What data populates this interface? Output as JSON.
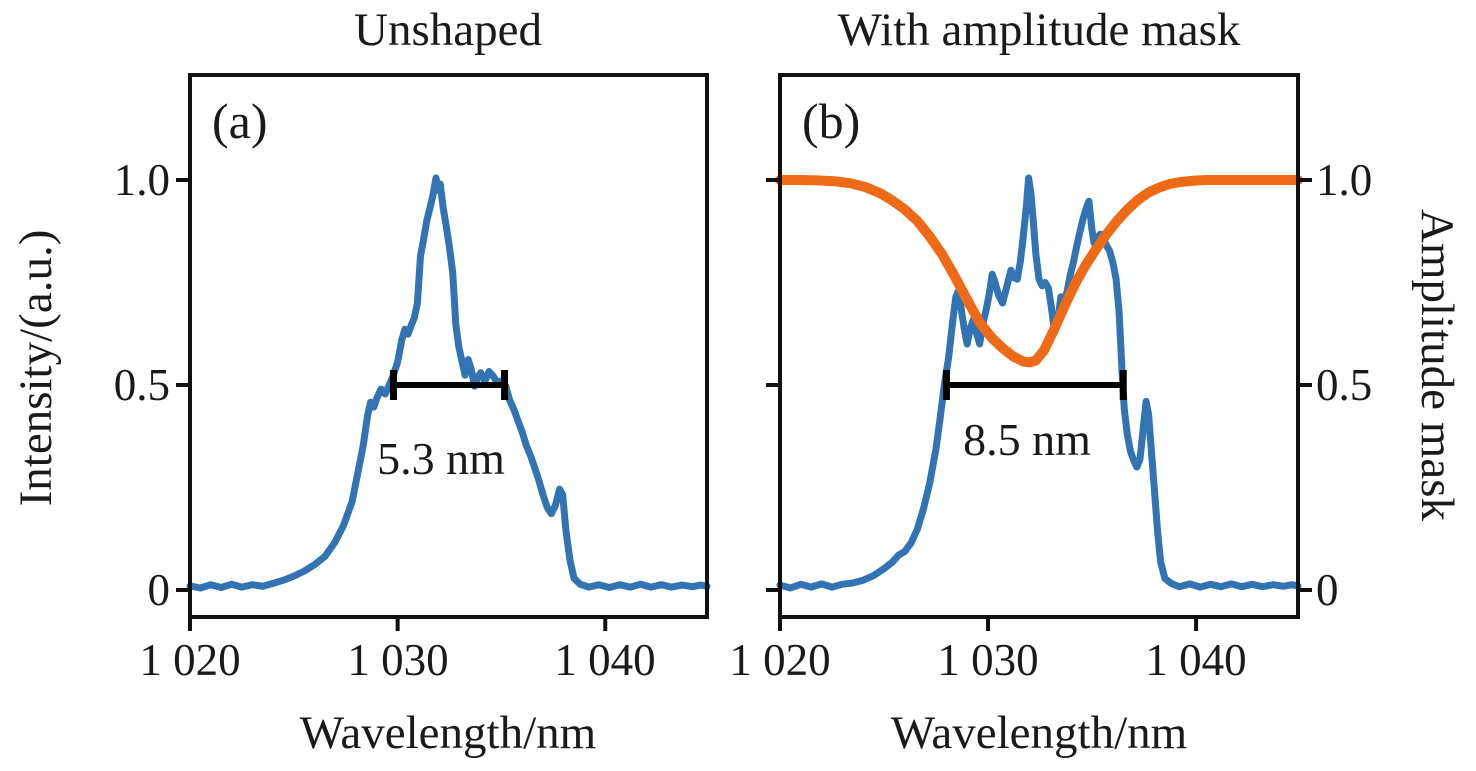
{
  "figure": {
    "colors": {
      "spectrum_blue": "#3273b3",
      "mask_orange": "#ee6a17",
      "axis_black": "#111111",
      "marker_black": "#000000",
      "background": "#ffffff"
    },
    "ylabel_left": "Intensity/(a.u.)",
    "ylabel_right": "Amplitude mask"
  },
  "chart_data": [
    {
      "type": "line",
      "panel_label": "(a)",
      "title": "Unshaped",
      "xlabel": "Wavelength/nm",
      "ylabel": "Intensity/(a.u.)",
      "xlim": [
        1020,
        1044.9
      ],
      "ylim": [
        -0.07,
        1.26
      ],
      "grid": false,
      "legend": "none",
      "xticks": {
        "values": [
          1020,
          1030,
          1040
        ],
        "labels": [
          "1 020",
          "1 030",
          "1 040"
        ]
      },
      "yticks": {
        "values": [
          0,
          0.5,
          1.0
        ],
        "labels": [
          "0",
          "0.5",
          "1.0"
        ]
      },
      "fwhm_marker": {
        "x1": 1029.8,
        "x2": 1035.15,
        "y": 0.5,
        "label": "5.3 nm"
      },
      "series": [
        {
          "name": "spectrum",
          "color": "#3273b3",
          "width": 7,
          "points": [
            [
              1020.0,
              0.01
            ],
            [
              1020.5,
              0.005
            ],
            [
              1021.0,
              0.013
            ],
            [
              1021.5,
              0.006
            ],
            [
              1022.0,
              0.014
            ],
            [
              1022.5,
              0.007
            ],
            [
              1023.0,
              0.013
            ],
            [
              1023.5,
              0.009
            ],
            [
              1024.0,
              0.016
            ],
            [
              1024.5,
              0.024
            ],
            [
              1025.0,
              0.034
            ],
            [
              1025.5,
              0.046
            ],
            [
              1026.0,
              0.062
            ],
            [
              1026.5,
              0.082
            ],
            [
              1027.0,
              0.118
            ],
            [
              1027.4,
              0.158
            ],
            [
              1027.8,
              0.215
            ],
            [
              1028.1,
              0.29
            ],
            [
              1028.35,
              0.355
            ],
            [
              1028.55,
              0.425
            ],
            [
              1028.7,
              0.458
            ],
            [
              1028.85,
              0.446
            ],
            [
              1029.0,
              0.468
            ],
            [
              1029.2,
              0.49
            ],
            [
              1029.4,
              0.478
            ],
            [
              1029.6,
              0.5
            ],
            [
              1029.8,
              0.525
            ],
            [
              1030.0,
              0.556
            ],
            [
              1030.2,
              0.61
            ],
            [
              1030.35,
              0.636
            ],
            [
              1030.5,
              0.624
            ],
            [
              1030.65,
              0.645
            ],
            [
              1030.8,
              0.663
            ],
            [
              1030.95,
              0.7
            ],
            [
              1031.1,
              0.815
            ],
            [
              1031.25,
              0.855
            ],
            [
              1031.4,
              0.9
            ],
            [
              1031.55,
              0.93
            ],
            [
              1031.7,
              0.962
            ],
            [
              1031.85,
              1.005
            ],
            [
              1031.95,
              0.975
            ],
            [
              1032.05,
              0.99
            ],
            [
              1032.2,
              0.93
            ],
            [
              1032.35,
              0.885
            ],
            [
              1032.5,
              0.835
            ],
            [
              1032.65,
              0.775
            ],
            [
              1032.8,
              0.648
            ],
            [
              1032.95,
              0.592
            ],
            [
              1033.1,
              0.558
            ],
            [
              1033.25,
              0.524
            ],
            [
              1033.4,
              0.562
            ],
            [
              1033.55,
              0.538
            ],
            [
              1033.7,
              0.497
            ],
            [
              1033.85,
              0.518
            ],
            [
              1034.0,
              0.53
            ],
            [
              1034.2,
              0.508
            ],
            [
              1034.4,
              0.533
            ],
            [
              1034.6,
              0.522
            ],
            [
              1034.8,
              0.506
            ],
            [
              1035.0,
              0.51
            ],
            [
              1035.2,
              0.498
            ],
            [
              1035.4,
              0.462
            ],
            [
              1035.6,
              0.44
            ],
            [
              1035.8,
              0.412
            ],
            [
              1036.0,
              0.385
            ],
            [
              1036.2,
              0.352
            ],
            [
              1036.4,
              0.328
            ],
            [
              1036.6,
              0.298
            ],
            [
              1036.8,
              0.268
            ],
            [
              1037.0,
              0.232
            ],
            [
              1037.2,
              0.202
            ],
            [
              1037.4,
              0.186
            ],
            [
              1037.6,
              0.206
            ],
            [
              1037.8,
              0.246
            ],
            [
              1037.95,
              0.232
            ],
            [
              1038.1,
              0.148
            ],
            [
              1038.3,
              0.072
            ],
            [
              1038.5,
              0.028
            ],
            [
              1038.8,
              0.014
            ],
            [
              1039.2,
              0.007
            ],
            [
              1039.7,
              0.013
            ],
            [
              1040.2,
              0.006
            ],
            [
              1040.7,
              0.013
            ],
            [
              1041.2,
              0.007
            ],
            [
              1041.7,
              0.014
            ],
            [
              1042.2,
              0.007
            ],
            [
              1042.7,
              0.013
            ],
            [
              1043.2,
              0.007
            ],
            [
              1043.7,
              0.012
            ],
            [
              1044.2,
              0.008
            ],
            [
              1044.6,
              0.012
            ],
            [
              1044.9,
              0.009
            ]
          ]
        }
      ]
    },
    {
      "type": "line",
      "panel_label": "(b)",
      "title": "With amplitude mask",
      "xlabel": "Wavelength/nm",
      "ylabel_right": "Amplitude mask",
      "xlim": [
        1020,
        1044.9
      ],
      "ylim": [
        -0.07,
        1.26
      ],
      "grid": false,
      "legend": "none",
      "xticks": {
        "values": [
          1020,
          1030,
          1040
        ],
        "labels": [
          "1 020",
          "1 030",
          "1 040"
        ]
      },
      "yticks": {
        "values": [
          0,
          0.5,
          1.0
        ],
        "labels": [
          "0",
          "0.5",
          "1.0"
        ]
      },
      "fwhm_marker": {
        "x1": 1028.0,
        "x2": 1036.5,
        "y": 0.5,
        "label": "8.5 nm"
      },
      "series": [
        {
          "name": "spectrum",
          "color": "#3273b3",
          "width": 7,
          "points": [
            [
              1020.0,
              0.012
            ],
            [
              1020.5,
              0.005
            ],
            [
              1021.0,
              0.014
            ],
            [
              1021.5,
              0.007
            ],
            [
              1022.0,
              0.015
            ],
            [
              1022.5,
              0.007
            ],
            [
              1023.0,
              0.014
            ],
            [
              1023.5,
              0.017
            ],
            [
              1024.0,
              0.024
            ],
            [
              1024.5,
              0.035
            ],
            [
              1025.0,
              0.052
            ],
            [
              1025.4,
              0.068
            ],
            [
              1025.7,
              0.085
            ],
            [
              1026.0,
              0.094
            ],
            [
              1026.3,
              0.115
            ],
            [
              1026.6,
              0.148
            ],
            [
              1026.9,
              0.198
            ],
            [
              1027.2,
              0.262
            ],
            [
              1027.5,
              0.345
            ],
            [
              1027.7,
              0.42
            ],
            [
              1027.9,
              0.5
            ],
            [
              1028.1,
              0.565
            ],
            [
              1028.3,
              0.655
            ],
            [
              1028.45,
              0.715
            ],
            [
              1028.6,
              0.732
            ],
            [
              1028.75,
              0.672
            ],
            [
              1028.9,
              0.625
            ],
            [
              1029.0,
              0.6
            ],
            [
              1029.15,
              0.638
            ],
            [
              1029.3,
              0.66
            ],
            [
              1029.45,
              0.625
            ],
            [
              1029.6,
              0.6
            ],
            [
              1029.75,
              0.648
            ],
            [
              1029.9,
              0.682
            ],
            [
              1030.05,
              0.72
            ],
            [
              1030.2,
              0.77
            ],
            [
              1030.35,
              0.748
            ],
            [
              1030.5,
              0.72
            ],
            [
              1030.7,
              0.7
            ],
            [
              1030.9,
              0.74
            ],
            [
              1031.1,
              0.78
            ],
            [
              1031.25,
              0.762
            ],
            [
              1031.4,
              0.758
            ],
            [
              1031.55,
              0.8
            ],
            [
              1031.7,
              0.865
            ],
            [
              1031.85,
              0.94
            ],
            [
              1031.95,
              1.005
            ],
            [
              1032.05,
              0.972
            ],
            [
              1032.15,
              0.915
            ],
            [
              1032.3,
              0.818
            ],
            [
              1032.45,
              0.758
            ],
            [
              1032.6,
              0.742
            ],
            [
              1032.75,
              0.75
            ],
            [
              1032.9,
              0.736
            ],
            [
              1033.05,
              0.688
            ],
            [
              1033.2,
              0.628
            ],
            [
              1033.35,
              0.652
            ],
            [
              1033.5,
              0.715
            ],
            [
              1033.65,
              0.705
            ],
            [
              1033.8,
              0.728
            ],
            [
              1033.95,
              0.768
            ],
            [
              1034.1,
              0.798
            ],
            [
              1034.25,
              0.835
            ],
            [
              1034.4,
              0.87
            ],
            [
              1034.55,
              0.902
            ],
            [
              1034.7,
              0.928
            ],
            [
              1034.85,
              0.948
            ],
            [
              1035.0,
              0.878
            ],
            [
              1035.1,
              0.846
            ],
            [
              1035.25,
              0.86
            ],
            [
              1035.4,
              0.868
            ],
            [
              1035.55,
              0.856
            ],
            [
              1035.7,
              0.84
            ],
            [
              1035.85,
              0.826
            ],
            [
              1036.0,
              0.798
            ],
            [
              1036.15,
              0.76
            ],
            [
              1036.3,
              0.678
            ],
            [
              1036.45,
              0.528
            ],
            [
              1036.55,
              0.44
            ],
            [
              1036.7,
              0.378
            ],
            [
              1036.85,
              0.338
            ],
            [
              1037.0,
              0.316
            ],
            [
              1037.15,
              0.3
            ],
            [
              1037.3,
              0.318
            ],
            [
              1037.45,
              0.388
            ],
            [
              1037.6,
              0.46
            ],
            [
              1037.72,
              0.428
            ],
            [
              1037.85,
              0.342
            ],
            [
              1038.0,
              0.242
            ],
            [
              1038.15,
              0.142
            ],
            [
              1038.3,
              0.068
            ],
            [
              1038.5,
              0.028
            ],
            [
              1038.8,
              0.016
            ],
            [
              1039.2,
              0.008
            ],
            [
              1039.7,
              0.015
            ],
            [
              1040.2,
              0.007
            ],
            [
              1040.7,
              0.014
            ],
            [
              1041.2,
              0.008
            ],
            [
              1041.7,
              0.015
            ],
            [
              1042.2,
              0.008
            ],
            [
              1042.7,
              0.014
            ],
            [
              1043.2,
              0.008
            ],
            [
              1043.7,
              0.013
            ],
            [
              1044.2,
              0.009
            ],
            [
              1044.6,
              0.013
            ],
            [
              1044.9,
              0.01
            ]
          ]
        },
        {
          "name": "mask",
          "color": "#ee6a17",
          "width": 10,
          "points": [
            [
              1020.0,
              1.0
            ],
            [
              1021.0,
              1.0
            ],
            [
              1021.8,
              0.999
            ],
            [
              1022.6,
              0.997
            ],
            [
              1023.4,
              0.992
            ],
            [
              1024.1,
              0.983
            ],
            [
              1024.8,
              0.968
            ],
            [
              1025.4,
              0.95
            ],
            [
              1026.0,
              0.928
            ],
            [
              1026.6,
              0.9
            ],
            [
              1027.2,
              0.862
            ],
            [
              1027.8,
              0.818
            ],
            [
              1028.4,
              0.765
            ],
            [
              1029.0,
              0.708
            ],
            [
              1029.6,
              0.652
            ],
            [
              1030.2,
              0.614
            ],
            [
              1030.7,
              0.59
            ],
            [
              1031.2,
              0.57
            ],
            [
              1031.7,
              0.557
            ],
            [
              1032.0,
              0.555
            ],
            [
              1032.3,
              0.56
            ],
            [
              1032.7,
              0.585
            ],
            [
              1033.2,
              0.638
            ],
            [
              1033.7,
              0.695
            ],
            [
              1034.2,
              0.748
            ],
            [
              1034.7,
              0.793
            ],
            [
              1035.2,
              0.832
            ],
            [
              1035.7,
              0.868
            ],
            [
              1036.2,
              0.9
            ],
            [
              1036.7,
              0.928
            ],
            [
              1037.2,
              0.951
            ],
            [
              1037.7,
              0.969
            ],
            [
              1038.2,
              0.981
            ],
            [
              1038.7,
              0.99
            ],
            [
              1039.2,
              0.995
            ],
            [
              1039.8,
              0.998
            ],
            [
              1040.5,
              1.0
            ],
            [
              1042.0,
              1.0
            ],
            [
              1043.5,
              1.0
            ],
            [
              1044.9,
              1.0
            ]
          ]
        }
      ]
    }
  ]
}
